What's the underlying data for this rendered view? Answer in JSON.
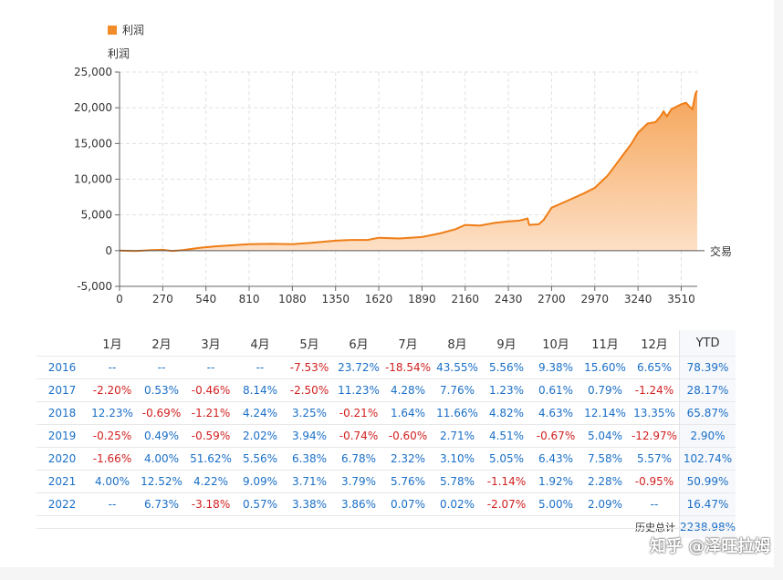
{
  "legend": {
    "label": "利润",
    "color": "#f28c28"
  },
  "axis": {
    "ylabel": "利润",
    "xlabel": "交易"
  },
  "chart_data": {
    "type": "area",
    "title": "",
    "xlabel": "交易",
    "ylabel": "利润",
    "xlim": [
      0,
      3610
    ],
    "ylim": [
      -5000,
      25000
    ],
    "xticks": [
      0,
      270,
      540,
      810,
      1080,
      1350,
      1620,
      1890,
      2160,
      2430,
      2700,
      2970,
      3240,
      3510
    ],
    "yticks": [
      -5000,
      0,
      5000,
      10000,
      15000,
      20000,
      25000
    ],
    "ytick_labels": [
      "-5,000",
      "0",
      "5,000",
      "10,000",
      "15,000",
      "20,000",
      "25,000"
    ],
    "grid": true,
    "legend_position": "top-left",
    "series": [
      {
        "name": "利润",
        "color": "#f28c28",
        "points": [
          [
            0,
            0
          ],
          [
            100,
            -50
          ],
          [
            200,
            80
          ],
          [
            270,
            120
          ],
          [
            330,
            -50
          ],
          [
            400,
            100
          ],
          [
            500,
            400
          ],
          [
            600,
            600
          ],
          [
            700,
            750
          ],
          [
            810,
            900
          ],
          [
            950,
            950
          ],
          [
            1080,
            900
          ],
          [
            1200,
            1100
          ],
          [
            1350,
            1400
          ],
          [
            1450,
            1500
          ],
          [
            1550,
            1500
          ],
          [
            1620,
            1800
          ],
          [
            1750,
            1700
          ],
          [
            1890,
            1900
          ],
          [
            2000,
            2400
          ],
          [
            2100,
            3000
          ],
          [
            2160,
            3600
          ],
          [
            2250,
            3500
          ],
          [
            2350,
            3900
          ],
          [
            2430,
            4100
          ],
          [
            2500,
            4200
          ],
          [
            2550,
            4500
          ],
          [
            2560,
            3600
          ],
          [
            2620,
            3700
          ],
          [
            2650,
            4300
          ],
          [
            2700,
            6000
          ],
          [
            2800,
            7000
          ],
          [
            2900,
            8000
          ],
          [
            2970,
            8800
          ],
          [
            3050,
            10500
          ],
          [
            3100,
            12000
          ],
          [
            3150,
            13500
          ],
          [
            3200,
            15000
          ],
          [
            3240,
            16500
          ],
          [
            3300,
            17800
          ],
          [
            3350,
            18000
          ],
          [
            3380,
            18800
          ],
          [
            3400,
            19500
          ],
          [
            3420,
            18800
          ],
          [
            3450,
            19800
          ],
          [
            3510,
            20500
          ],
          [
            3540,
            20700
          ],
          [
            3560,
            20200
          ],
          [
            3580,
            19800
          ],
          [
            3600,
            22000
          ],
          [
            3610,
            22400
          ]
        ]
      }
    ]
  },
  "table": {
    "header_year": "",
    "months": [
      "1月",
      "2月",
      "3月",
      "4月",
      "5月",
      "6月",
      "7月",
      "8月",
      "9月",
      "10月",
      "11月",
      "12月"
    ],
    "ytd_label": "YTD",
    "rows": [
      {
        "year": "2016",
        "values": [
          "--",
          "--",
          "--",
          "--",
          "-7.53%",
          "23.72%",
          "-18.54%",
          "43.55%",
          "5.56%",
          "9.38%",
          "15.60%",
          "6.65%"
        ],
        "ytd": "78.39%"
      },
      {
        "year": "2017",
        "values": [
          "-2.20%",
          "0.53%",
          "-0.46%",
          "8.14%",
          "-2.50%",
          "11.23%",
          "4.28%",
          "7.76%",
          "1.23%",
          "0.61%",
          "0.79%",
          "-1.24%"
        ],
        "ytd": "28.17%"
      },
      {
        "year": "2018",
        "values": [
          "12.23%",
          "-0.69%",
          "-1.21%",
          "4.24%",
          "3.25%",
          "-0.21%",
          "1.64%",
          "11.66%",
          "4.82%",
          "4.63%",
          "12.14%",
          "13.35%"
        ],
        "ytd": "65.87%"
      },
      {
        "year": "2019",
        "values": [
          "-0.25%",
          "0.49%",
          "-0.59%",
          "2.02%",
          "3.94%",
          "-0.74%",
          "-0.60%",
          "2.71%",
          "4.51%",
          "-0.67%",
          "5.04%",
          "-12.97%"
        ],
        "ytd": "2.90%"
      },
      {
        "year": "2020",
        "values": [
          "-1.66%",
          "4.00%",
          "51.62%",
          "5.56%",
          "6.38%",
          "6.78%",
          "2.32%",
          "3.10%",
          "5.05%",
          "6.43%",
          "7.58%",
          "5.57%"
        ],
        "ytd": "102.74%"
      },
      {
        "year": "2021",
        "values": [
          "4.00%",
          "12.52%",
          "4.22%",
          "9.09%",
          "3.71%",
          "3.79%",
          "5.76%",
          "5.78%",
          "-1.14%",
          "1.92%",
          "2.28%",
          "-0.95%"
        ],
        "ytd": "50.99%"
      },
      {
        "year": "2022",
        "values": [
          "--",
          "6.73%",
          "-3.18%",
          "0.57%",
          "3.38%",
          "3.86%",
          "0.07%",
          "0.02%",
          "-2.07%",
          "5.00%",
          "2.09%",
          "--"
        ],
        "ytd": "16.47%"
      }
    ],
    "total_label": "历史总计",
    "total_value": "2238.98%"
  },
  "watermark": "知乎 @泽旺拉姆"
}
